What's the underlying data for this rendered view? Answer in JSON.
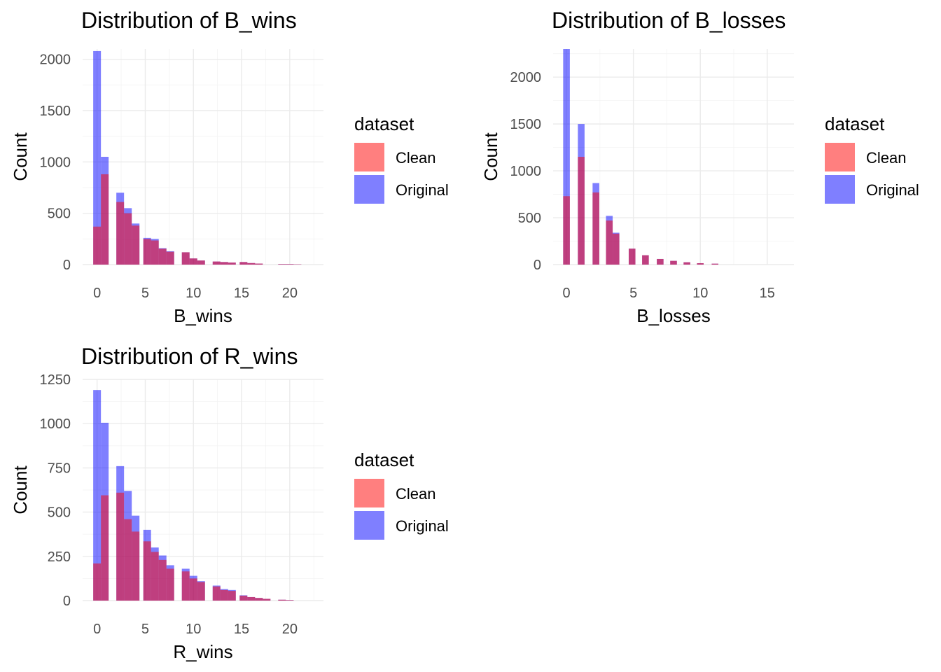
{
  "colors": {
    "clean": "#ff0000",
    "original": "#0000ff",
    "fill_alpha": 0.5,
    "grid": "#ebebeb"
  },
  "chart_data": [
    {
      "type": "bar",
      "title": "Distribution of B_wins",
      "xlabel": "B_wins",
      "ylabel": "Count",
      "xlim": [
        -1.5,
        23.5
      ],
      "ylim": [
        0,
        2100
      ],
      "x_ticks": [
        0,
        5,
        10,
        15,
        20
      ],
      "x_tick_labels": [
        "0",
        "5",
        "10",
        "15",
        "20"
      ],
      "y_ticks": [
        0,
        500,
        1000,
        1500,
        2000
      ],
      "y_tick_labels": [
        "0",
        "500",
        "1000",
        "1500",
        "2000"
      ],
      "bin_width": 0.8,
      "grid": true,
      "legend": {
        "title": "dataset",
        "placement": "right",
        "entries": [
          "Clean",
          "Original"
        ]
      },
      "x": [
        0,
        0.8,
        2.4,
        3.2,
        4.0,
        5.2,
        6.0,
        6.8,
        7.6,
        9.2,
        10.0,
        10.8,
        12.4,
        13.2,
        14.0,
        15.2,
        16.0,
        16.8,
        19.2,
        20.0,
        20.8
      ],
      "series": [
        {
          "name": "Original",
          "values": [
            2080,
            1050,
            700,
            550,
            400,
            260,
            250,
            160,
            130,
            120,
            60,
            40,
            30,
            25,
            20,
            25,
            15,
            10,
            5,
            5,
            3
          ]
        },
        {
          "name": "Clean",
          "values": [
            370,
            880,
            610,
            500,
            380,
            250,
            235,
            155,
            125,
            120,
            60,
            40,
            30,
            25,
            20,
            25,
            15,
            10,
            5,
            5,
            3
          ]
        }
      ]
    },
    {
      "type": "bar",
      "title": "Distribution of B_losses",
      "xlabel": "B_losses",
      "ylabel": "Count",
      "xlim": [
        -1,
        17
      ],
      "ylim": [
        0,
        2300
      ],
      "x_ticks": [
        0,
        5,
        10,
        15
      ],
      "x_tick_labels": [
        "0",
        "5",
        "10",
        "15"
      ],
      "y_ticks": [
        0,
        500,
        1000,
        1500,
        2000
      ],
      "y_tick_labels": [
        "0",
        "500",
        "1000",
        "1500",
        "2000"
      ],
      "bin_width": 0.5,
      "grid": true,
      "legend": {
        "title": "dataset",
        "placement": "right",
        "entries": [
          "Clean",
          "Original"
        ]
      },
      "x": [
        0,
        1.1,
        2.2,
        3.2,
        3.7,
        4.9,
        5.9,
        7.0,
        8.0,
        9.0,
        10.0,
        11.1
      ],
      "series": [
        {
          "name": "Original",
          "values": [
            2300,
            1500,
            870,
            520,
            340,
            170,
            100,
            60,
            40,
            25,
            15,
            10
          ]
        },
        {
          "name": "Clean",
          "values": [
            730,
            1150,
            770,
            470,
            330,
            170,
            100,
            60,
            40,
            25,
            15,
            10
          ]
        }
      ]
    },
    {
      "type": "bar",
      "title": "Distribution of R_wins",
      "xlabel": "R_wins",
      "ylabel": "Count",
      "xlim": [
        -1.5,
        23.5
      ],
      "ylim": [
        0,
        1250
      ],
      "x_ticks": [
        0,
        5,
        10,
        15,
        20
      ],
      "x_tick_labels": [
        "0",
        "5",
        "10",
        "15",
        "20"
      ],
      "y_ticks": [
        0,
        250,
        500,
        750,
        1000,
        1250
      ],
      "y_tick_labels": [
        "0",
        "250",
        "500",
        "750",
        "1000",
        "1250"
      ],
      "bin_width": 0.8,
      "grid": true,
      "legend": {
        "title": "dataset",
        "placement": "right",
        "entries": [
          "Clean",
          "Original"
        ]
      },
      "x": [
        0,
        0.8,
        2.4,
        3.2,
        4.0,
        5.2,
        6.0,
        6.8,
        7.6,
        9.2,
        10.0,
        10.8,
        12.4,
        13.2,
        14.0,
        15.2,
        16.0,
        16.8,
        17.6,
        19.2,
        20.0
      ],
      "series": [
        {
          "name": "Original",
          "values": [
            1190,
            1005,
            760,
            620,
            480,
            400,
            300,
            255,
            200,
            180,
            140,
            110,
            85,
            65,
            60,
            30,
            20,
            15,
            10,
            5,
            3
          ]
        },
        {
          "name": "Clean",
          "values": [
            210,
            595,
            610,
            460,
            390,
            335,
            275,
            230,
            180,
            165,
            125,
            105,
            80,
            60,
            55,
            28,
            20,
            15,
            10,
            5,
            3
          ]
        }
      ]
    }
  ]
}
